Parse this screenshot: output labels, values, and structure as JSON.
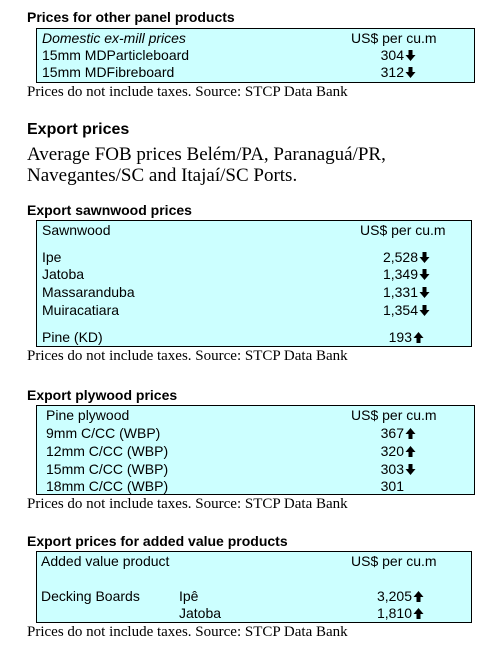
{
  "panel": {
    "heading": "Prices for other panel products",
    "col_product": "Domestic ex-mill prices",
    "col_price": "US$ per cu.m",
    "rows": [
      {
        "name": "15mm MDParticleboard",
        "value": "304",
        "trend": "down"
      },
      {
        "name": "15mm MDFibreboard",
        "value": "312",
        "trend": "down"
      }
    ],
    "note": "Prices do not include taxes. Source: STCP Data Bank"
  },
  "export": {
    "heading": "Export prices",
    "desc_line1": "Average FOB prices Belém/PA, Paranaguá/PR,",
    "desc_line2": "Navegantes/SC and Itajaí/SC Ports."
  },
  "sawnwood": {
    "heading": "Export sawnwood prices",
    "col_product": "Sawnwood",
    "col_price": "US$ per cu.m",
    "rows": [
      {
        "name": "Ipe",
        "value": "2,528",
        "trend": "down"
      },
      {
        "name": "Jatoba",
        "value": "1,349",
        "trend": "down"
      },
      {
        "name": "Massaranduba",
        "value": "1,331",
        "trend": "down"
      },
      {
        "name": "Muiracatiara",
        "value": "1,354",
        "trend": "down"
      },
      {
        "name": "Pine (KD)",
        "value": "193",
        "trend": "up"
      }
    ],
    "note": "Prices do not include taxes. Source: STCP Data Bank"
  },
  "plywood": {
    "heading": "Export plywood prices",
    "col_product": "Pine plywood",
    "col_price": "US$ per cu.m",
    "rows": [
      {
        "name": "9mm C/CC (WBP)",
        "value": "367",
        "trend": "up"
      },
      {
        "name": "12mm C/CC (WBP)",
        "value": "320",
        "trend": "up"
      },
      {
        "name": "15mm C/CC (WBP)",
        "value": "303",
        "trend": "down"
      },
      {
        "name": "18mm C/CC (WBP)",
        "value": "301",
        "trend": "none"
      }
    ],
    "note": "Prices do not include taxes. Source: STCP Data Bank"
  },
  "added": {
    "heading": "Export prices for added value products",
    "col_product": "Added value product",
    "col_price": "US$ per cu.m",
    "group": "Decking Boards",
    "rows": [
      {
        "name": "Ipê",
        "value": "3,205",
        "trend": "up"
      },
      {
        "name": "Jatoba",
        "value": "1,810",
        "trend": "up"
      }
    ],
    "note": "Prices do not include taxes. Source: STCP Data Bank"
  }
}
